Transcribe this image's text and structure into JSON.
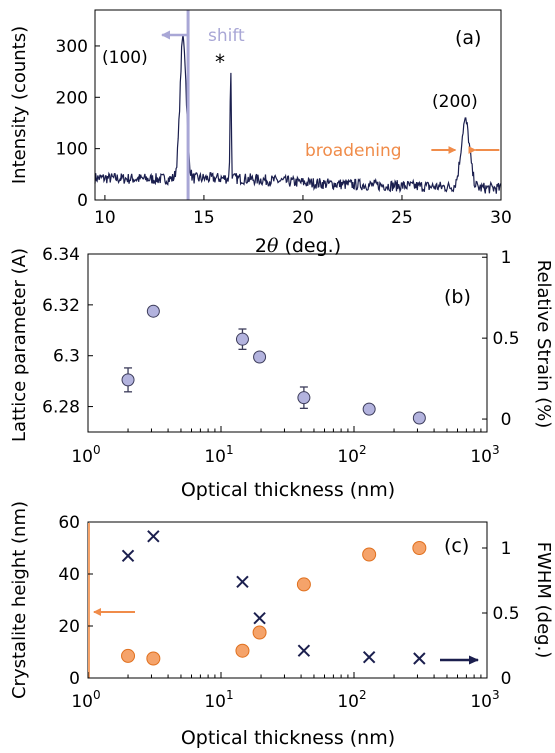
{
  "chart_data": [
    {
      "panel": "(a)",
      "type": "line",
      "xlabel": "2θ (deg.)",
      "ylabel": "Intensity (counts)",
      "xlim": [
        9.5,
        30
      ],
      "ylim": [
        0,
        370
      ],
      "xticks": [
        10,
        15,
        20,
        25,
        30
      ],
      "yticks": [
        0,
        100,
        200,
        300
      ],
      "peaks": [
        {
          "label": "(100)",
          "x": 13.95,
          "y": 322
        },
        {
          "label": "*",
          "x": 16.35,
          "y": 252
        },
        {
          "label": "(200)",
          "x": 28.2,
          "y": 165
        }
      ],
      "annotations": [
        "shift",
        "broadening"
      ],
      "shift_line_x": 14.2,
      "colors": {
        "trace": "#1b1f4e",
        "shift": "#a9a7d6",
        "broadening": "#f08c4a"
      }
    },
    {
      "panel": "(b)",
      "type": "scatter",
      "xscale": "log",
      "xlabel": "Optical thickness (nm)",
      "ylabel": "Lattice parameter (A)",
      "y2label": "Relative Strain (%)",
      "xlim": [
        1,
        1000
      ],
      "ylim": [
        6.27,
        6.34
      ],
      "y2lim": [
        -0.08,
        1.02
      ],
      "yticks": [
        "6.28",
        "6.3",
        "6.32",
        "6.34"
      ],
      "y2ticks": [
        "0",
        "0.5",
        "1"
      ],
      "xtick_labels": [
        {
          "base": "10",
          "exp": "0"
        },
        {
          "base": "10",
          "exp": "1"
        },
        {
          "base": "10",
          "exp": "2"
        },
        {
          "base": "10",
          "exp": "3"
        }
      ],
      "points": [
        {
          "x": 2,
          "y": 6.2905,
          "err": 0.0047
        },
        {
          "x": 3.1,
          "y": 6.3175,
          "err": 0
        },
        {
          "x": 14.5,
          "y": 6.3065,
          "err": 0.004
        },
        {
          "x": 19.5,
          "y": 6.2995,
          "err": 0
        },
        {
          "x": 42,
          "y": 6.2835,
          "err": 0.0042
        },
        {
          "x": 130,
          "y": 6.279,
          "err": 0
        },
        {
          "x": 310,
          "y": 6.2755,
          "err": 0
        }
      ],
      "colors": {
        "marker": "#b3b3de",
        "edge": "#3c3c5a"
      }
    },
    {
      "panel": "(c)",
      "type": "scatter",
      "xscale": "log",
      "xlabel": "Optical thickness (nm)",
      "ylabel": "Crystalite height (nm)",
      "y2label": "FWHM (deg.)",
      "xlim": [
        1,
        1000
      ],
      "ylim": [
        0,
        60
      ],
      "y2lim": [
        0,
        1.2
      ],
      "yticks": [
        "0",
        "20",
        "40",
        "60"
      ],
      "y2ticks": [
        "0",
        "0.5",
        "1"
      ],
      "xtick_labels": [
        {
          "base": "10",
          "exp": "0"
        },
        {
          "base": "10",
          "exp": "1"
        },
        {
          "base": "10",
          "exp": "2"
        },
        {
          "base": "10",
          "exp": "3"
        }
      ],
      "series": [
        {
          "axis": "left",
          "marker": "circle",
          "x": [
            2,
            3.1,
            14.5,
            19.5,
            42,
            130,
            310
          ],
          "values": [
            8.5,
            7.5,
            10.5,
            17.5,
            36,
            47.5,
            50
          ]
        },
        {
          "axis": "right",
          "marker": "cross",
          "x": [
            2,
            3.1,
            14.5,
            19.5,
            42,
            130,
            310
          ],
          "values": [
            0.94,
            1.09,
            0.74,
            0.46,
            0.21,
            0.16,
            0.15
          ]
        }
      ],
      "colors": {
        "left": "#f5a36a",
        "left_edge": "#e0701e",
        "right": "#1b1f4e"
      }
    }
  ]
}
